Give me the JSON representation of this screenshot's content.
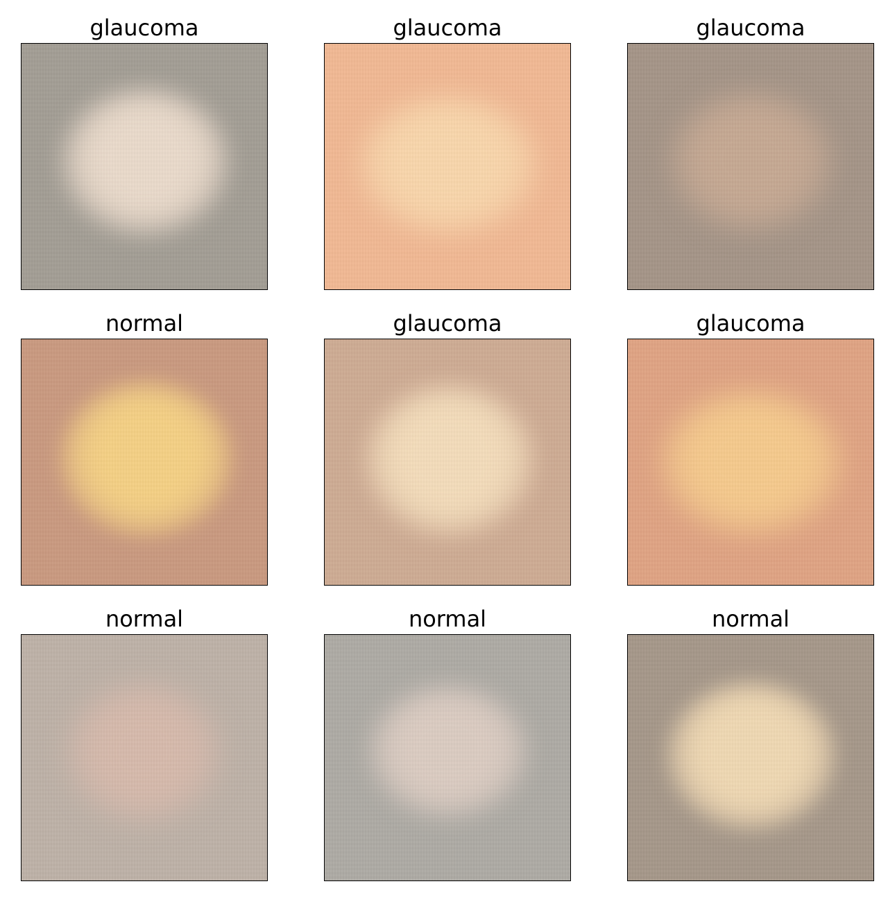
{
  "panels": [
    {
      "label": "glaucoma",
      "background": "#a29d94",
      "disc_color": "#e9d9ca",
      "disc_edge": "rgba(233,217,202,0)"
    },
    {
      "label": "glaucoma",
      "background": "#f1b893",
      "disc_color": "#f8d5ab",
      "disc_edge": "rgba(248,213,171,0)"
    },
    {
      "label": "glaucoma",
      "background": "#a49487",
      "disc_color": "#c5a892",
      "disc_edge": "rgba(197,168,146,0)"
    },
    {
      "label": "normal",
      "background": "#c9997f",
      "disc_color": "#f4cf84",
      "disc_edge": "rgba(240,176,100,0)"
    },
    {
      "label": "glaucoma",
      "background": "#cdab93",
      "disc_color": "#f3dbba",
      "disc_edge": "rgba(243,219,186,0)"
    },
    {
      "label": "glaucoma",
      "background": "#df a383",
      "disc_color": "#f5c98c",
      "disc_edge": "rgba(245,201,140,0)"
    },
    {
      "label": "normal",
      "background": "#bdb1a7",
      "disc_color": "#d5b9ab",
      "disc_edge": "rgba(213,185,171,0)"
    },
    {
      "label": "normal",
      "background": "#adaaa4",
      "disc_color": "#dacbc1",
      "disc_edge": "rgba(218,203,193,0)"
    },
    {
      "label": "normal",
      "background": "#a59789",
      "disc_color": "#efd7b2",
      "disc_edge": "rgba(239,215,178,0)"
    }
  ]
}
